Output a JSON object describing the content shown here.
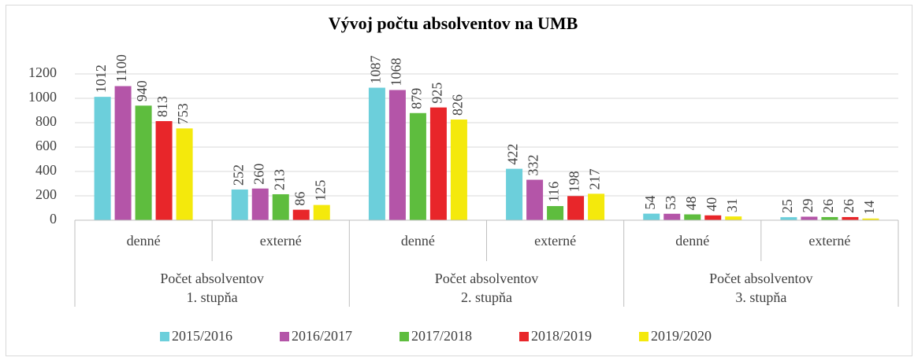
{
  "chart_data": {
    "type": "bar",
    "title": "Vývoj počtu absolventov na UMB",
    "categories": [
      "denné",
      "externé",
      "denné",
      "externé",
      "denné",
      "externé"
    ],
    "category_groups": [
      [
        "Počet absolventov",
        "1. stupňa"
      ],
      [
        "Počet absolventov",
        "2. stupňa"
      ],
      [
        "Počet absolventov",
        "3. stupňa"
      ]
    ],
    "series": [
      {
        "name": "2015/2016",
        "color": "#6ccfdb",
        "values": [
          1012,
          252,
          1087,
          422,
          54,
          25
        ]
      },
      {
        "name": "2016/2017",
        "color": "#b455a8",
        "values": [
          1100,
          260,
          1068,
          332,
          53,
          29
        ]
      },
      {
        "name": "2017/2018",
        "color": "#5ebd3e",
        "values": [
          940,
          213,
          879,
          116,
          48,
          26
        ]
      },
      {
        "name": "2018/2019",
        "color": "#e8262a",
        "values": [
          813,
          86,
          925,
          198,
          40,
          26
        ]
      },
      {
        "name": "2019/2020",
        "color": "#f4e90c",
        "values": [
          753,
          125,
          826,
          217,
          31,
          14
        ]
      }
    ],
    "ylim": [
      0,
      1200
    ],
    "yticks": [
      0,
      200,
      400,
      600,
      800,
      1000,
      1200
    ],
    "grid": true,
    "legend": "bottom"
  }
}
